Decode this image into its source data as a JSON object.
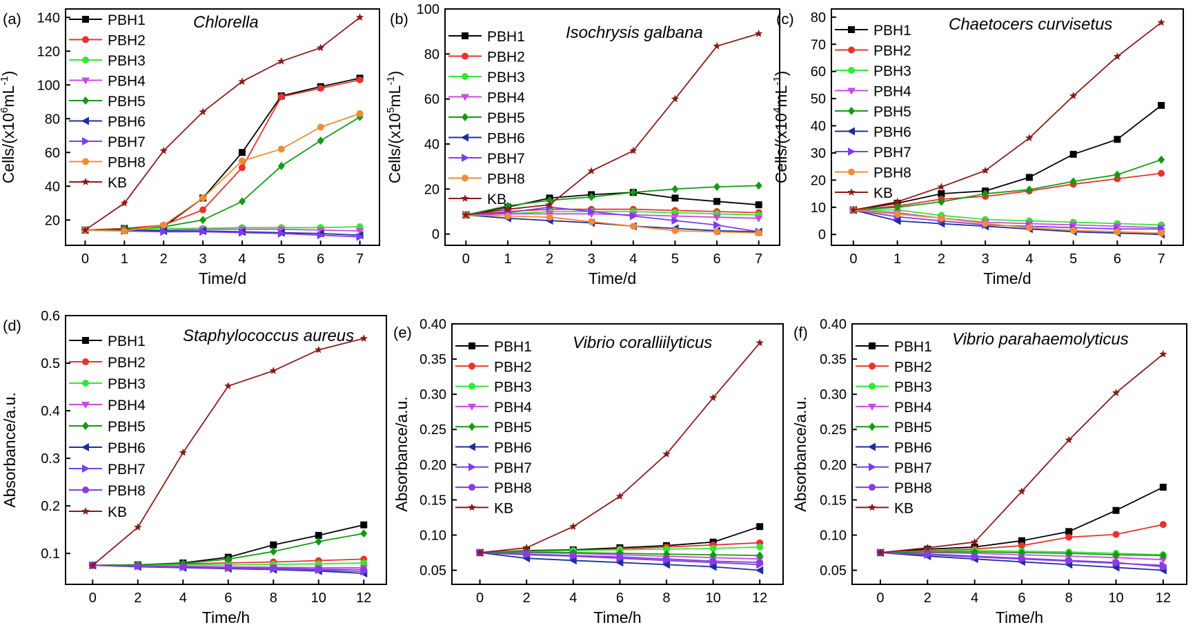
{
  "colors": {
    "PBH1": "#000000",
    "PBH2": "#e8322b",
    "PBH3": "#33e633",
    "PBH4": "#c84bdf",
    "PBH5": "#119a11",
    "PBH6": "#1c2f9e",
    "PBH7": "#7b3cf0",
    "PBH8_orange": "#f28b35",
    "PBH8_purple": "#8a3ce0",
    "KB": "#8b1a1a"
  },
  "chart_data": [
    {
      "type": "line",
      "panel_label": "(a)",
      "annotation": "Chlorella",
      "xlabel": "Time/d",
      "ylabel": "Cells/(x10",
      "ylabel_exp": "6",
      "ylabel_unit": "mL",
      "ylabel_unit_exp": "-1",
      "ylim": [
        5,
        145
      ],
      "yticks": [
        20,
        40,
        60,
        80,
        100,
        120,
        140
      ],
      "xlim": [
        -0.5,
        7.5
      ],
      "xticks": [
        0,
        1,
        2,
        3,
        4,
        5,
        6,
        7
      ],
      "x": [
        0,
        1,
        2,
        3,
        4,
        5,
        6,
        7
      ],
      "legend_position": "top-left",
      "series": [
        {
          "name": "PBH1",
          "values": [
            14,
            15,
            16,
            33,
            60,
            93.5,
            99,
            104
          ]
        },
        {
          "name": "PBH2",
          "values": [
            14,
            15,
            17,
            26,
            51,
            93,
            98,
            103
          ]
        },
        {
          "name": "PBH3",
          "values": [
            14,
            14.5,
            15,
            15,
            15.5,
            15.5,
            15.5,
            16
          ]
        },
        {
          "name": "PBH4",
          "values": [
            14,
            14,
            14,
            14.5,
            14.5,
            14.5,
            14,
            13.5
          ]
        },
        {
          "name": "PBH5",
          "values": [
            14,
            14.5,
            16,
            20,
            31,
            52,
            67,
            81
          ]
        },
        {
          "name": "PBH6",
          "values": [
            14,
            14,
            13.5,
            13.5,
            13,
            12.5,
            12,
            11
          ]
        },
        {
          "name": "PBH7",
          "values": [
            14,
            13.5,
            13,
            13,
            12.5,
            12,
            11,
            10
          ]
        },
        {
          "name": "PBH8",
          "values": [
            14,
            13.5,
            17,
            33,
            55,
            62,
            75,
            83
          ]
        },
        {
          "name": "KB",
          "values": [
            14,
            30,
            61,
            84,
            102,
            114,
            122,
            140
          ]
        }
      ]
    },
    {
      "type": "line",
      "panel_label": "(b)",
      "annotation": "Isochrysis galbana",
      "xlabel": "Time/d",
      "ylabel": "Cells/(x10",
      "ylabel_exp": "5",
      "ylabel_unit": "mL",
      "ylabel_unit_exp": "-1",
      "ylim": [
        -5,
        100
      ],
      "yticks": [
        0,
        20,
        40,
        60,
        80,
        100
      ],
      "xlim": [
        -0.5,
        7.5
      ],
      "xticks": [
        0,
        1,
        2,
        3,
        4,
        5,
        6,
        7
      ],
      "x": [
        0,
        1,
        2,
        3,
        4,
        5,
        6,
        7
      ],
      "legend_position": "top-left",
      "series": [
        {
          "name": "PBH1",
          "values": [
            8.5,
            12,
            16,
            17.5,
            18.5,
            16,
            14.5,
            13
          ]
        },
        {
          "name": "PBH2",
          "values": [
            8.5,
            10,
            11,
            11,
            11,
            10.5,
            10,
            9.5
          ]
        },
        {
          "name": "PBH3",
          "values": [
            8.5,
            9,
            10,
            10,
            10,
            9.5,
            9,
            8.5
          ]
        },
        {
          "name": "PBH4",
          "values": [
            8.5,
            9,
            9,
            9,
            8.5,
            8,
            7.5,
            7
          ]
        },
        {
          "name": "PBH5",
          "values": [
            8.5,
            12.5,
            15,
            16.5,
            18.5,
            20,
            21,
            21.5
          ]
        },
        {
          "name": "PBH6",
          "values": [
            8.5,
            7,
            6,
            5,
            3.5,
            2.5,
            1.5,
            1
          ]
        },
        {
          "name": "PBH7",
          "values": [
            8.5,
            9.5,
            12,
            10,
            8,
            6,
            4,
            1
          ]
        },
        {
          "name": "PBH8",
          "values": [
            8.5,
            8,
            7.5,
            5.5,
            3.5,
            1.5,
            1,
            0.5
          ]
        },
        {
          "name": "KB",
          "values": [
            8.5,
            11,
            13,
            28,
            37,
            60,
            83.5,
            89
          ]
        }
      ]
    },
    {
      "type": "line",
      "panel_label": "(c)",
      "annotation": "Chaetocers curvisetus",
      "xlabel": "Time/d",
      "ylabel": "Cells/(x10",
      "ylabel_exp": "4",
      "ylabel_unit": "mL",
      "ylabel_unit_exp": "-1",
      "ylim": [
        -4,
        83
      ],
      "yticks": [
        0,
        10,
        20,
        30,
        40,
        50,
        60,
        70,
        80
      ],
      "xlim": [
        -0.5,
        7.5
      ],
      "xticks": [
        0,
        1,
        2,
        3,
        4,
        5,
        6,
        7
      ],
      "x": [
        0,
        1,
        2,
        3,
        4,
        5,
        6,
        7
      ],
      "legend_position": "top-left",
      "series": [
        {
          "name": "PBH1",
          "values": [
            9,
            11.5,
            15,
            16,
            21,
            29.5,
            35,
            47.5
          ]
        },
        {
          "name": "PBH2",
          "values": [
            9,
            10.5,
            13,
            14,
            16,
            18.5,
            20.5,
            22.5
          ]
        },
        {
          "name": "PBH3",
          "values": [
            9,
            9,
            7,
            5.5,
            5,
            4.5,
            4,
            3.5
          ]
        },
        {
          "name": "PBH4",
          "values": [
            9,
            8,
            6,
            4.5,
            4,
            3.5,
            3,
            2.5
          ]
        },
        {
          "name": "PBH5",
          "values": [
            9,
            10,
            12,
            15,
            16.5,
            19.5,
            22,
            27.5
          ]
        },
        {
          "name": "PBH6",
          "values": [
            9,
            5,
            4,
            3,
            2,
            1,
            0.5,
            0
          ]
        },
        {
          "name": "PBH7",
          "values": [
            9,
            6.5,
            5,
            3.5,
            3,
            2.5,
            2,
            2
          ]
        },
        {
          "name": "PBH8",
          "values": [
            9,
            7.5,
            6,
            4,
            2.5,
            1.5,
            1,
            0.5
          ]
        },
        {
          "name": "KB",
          "values": [
            9,
            12,
            17.5,
            23.5,
            35.5,
            51,
            65.5,
            78
          ]
        }
      ]
    },
    {
      "type": "line",
      "panel_label": "(d)",
      "annotation": "Staphylococcus aureus",
      "xlabel": "Time/h",
      "ylabel": "Absorbance/a.u.",
      "ylim": [
        0.035,
        0.6
      ],
      "yticks": [
        0.1,
        0.2,
        0.3,
        0.4,
        0.5,
        0.6
      ],
      "ytick_labels": [
        "0.1",
        "0.2",
        "0.3",
        "0.4",
        "0.5",
        "0.6"
      ],
      "xlim": [
        -1.2,
        13
      ],
      "xticks": [
        0,
        2,
        4,
        6,
        8,
        10,
        12
      ],
      "x": [
        0,
        2,
        4,
        6,
        8,
        10,
        12
      ],
      "legend_position": "top-left",
      "series": [
        {
          "name": "PBH1",
          "values": [
            0.075,
            0.076,
            0.08,
            0.092,
            0.118,
            0.138,
            0.16
          ]
        },
        {
          "name": "PBH2",
          "values": [
            0.075,
            0.076,
            0.078,
            0.08,
            0.082,
            0.085,
            0.088
          ]
        },
        {
          "name": "PBH3",
          "values": [
            0.075,
            0.075,
            0.076,
            0.076,
            0.077,
            0.078,
            0.08
          ]
        },
        {
          "name": "PBH4",
          "values": [
            0.075,
            0.074,
            0.073,
            0.072,
            0.071,
            0.07,
            0.07
          ]
        },
        {
          "name": "PBH5",
          "values": [
            0.075,
            0.076,
            0.079,
            0.088,
            0.104,
            0.125,
            0.142
          ]
        },
        {
          "name": "PBH6",
          "values": [
            0.075,
            0.072,
            0.07,
            0.068,
            0.066,
            0.063,
            0.058
          ]
        },
        {
          "name": "PBH7",
          "values": [
            0.075,
            0.073,
            0.071,
            0.069,
            0.067,
            0.065,
            0.062
          ]
        },
        {
          "name": "PBH8",
          "values": [
            0.075,
            0.073,
            0.072,
            0.07,
            0.069,
            0.067,
            0.066
          ]
        },
        {
          "name": "KB",
          "values": [
            0.075,
            0.155,
            0.312,
            0.452,
            0.484,
            0.528,
            0.552
          ]
        }
      ]
    },
    {
      "type": "line",
      "panel_label": "(e)",
      "annotation": "Vibrio coralliilyticus",
      "xlabel": "Time/h",
      "ylabel": "Absorbance/a.u.",
      "ylim": [
        0.03,
        0.4
      ],
      "yticks": [
        0.05,
        0.1,
        0.15,
        0.2,
        0.25,
        0.3,
        0.35,
        0.4
      ],
      "ytick_labels": [
        "0.05",
        "0.10",
        "0.15",
        "0.20",
        "0.25",
        "0.30",
        "0.35",
        "0.40"
      ],
      "xlim": [
        -1.2,
        13
      ],
      "xticks": [
        0,
        2,
        4,
        6,
        8,
        10,
        12
      ],
      "x": [
        0,
        2,
        4,
        6,
        8,
        10,
        12
      ],
      "legend_position": "top-left",
      "series": [
        {
          "name": "PBH1",
          "values": [
            0.075,
            0.078,
            0.079,
            0.082,
            0.085,
            0.09,
            0.112
          ]
        },
        {
          "name": "PBH2",
          "values": [
            0.075,
            0.077,
            0.078,
            0.08,
            0.083,
            0.086,
            0.089
          ]
        },
        {
          "name": "PBH3",
          "values": [
            0.075,
            0.077,
            0.078,
            0.079,
            0.08,
            0.081,
            0.083
          ]
        },
        {
          "name": "PBH4",
          "values": [
            0.075,
            0.075,
            0.074,
            0.072,
            0.07,
            0.068,
            0.066
          ]
        },
        {
          "name": "PBH5",
          "values": [
            0.075,
            0.076,
            0.075,
            0.074,
            0.073,
            0.072,
            0.071
          ]
        },
        {
          "name": "PBH6",
          "values": [
            0.075,
            0.067,
            0.064,
            0.061,
            0.058,
            0.055,
            0.05
          ]
        },
        {
          "name": "PBH7",
          "values": [
            0.075,
            0.072,
            0.07,
            0.067,
            0.064,
            0.061,
            0.058
          ]
        },
        {
          "name": "PBH8",
          "values": [
            0.075,
            0.073,
            0.071,
            0.069,
            0.066,
            0.063,
            0.061
          ]
        },
        {
          "name": "KB",
          "values": [
            0.075,
            0.082,
            0.112,
            0.155,
            0.215,
            0.295,
            0.373
          ]
        }
      ]
    },
    {
      "type": "line",
      "panel_label": "(f)",
      "annotation": "Vibrio parahaemolyticus",
      "xlabel": "Time/h",
      "ylabel": "Absorbance/a.u.",
      "ylim": [
        0.03,
        0.4
      ],
      "yticks": [
        0.05,
        0.1,
        0.15,
        0.2,
        0.25,
        0.3,
        0.35,
        0.4
      ],
      "ytick_labels": [
        "0.05",
        "0.10",
        "0.15",
        "0.20",
        "0.25",
        "0.30",
        "0.35",
        "0.40"
      ],
      "xlim": [
        -1.2,
        13
      ],
      "xticks": [
        0,
        2,
        4,
        6,
        8,
        10,
        12
      ],
      "x": [
        0,
        2,
        4,
        6,
        8,
        10,
        12
      ],
      "legend_position": "top-left",
      "series": [
        {
          "name": "PBH1",
          "values": [
            0.075,
            0.08,
            0.083,
            0.092,
            0.105,
            0.135,
            0.168
          ]
        },
        {
          "name": "PBH2",
          "values": [
            0.075,
            0.078,
            0.08,
            0.085,
            0.097,
            0.101,
            0.115
          ]
        },
        {
          "name": "PBH3",
          "values": [
            0.075,
            0.077,
            0.078,
            0.077,
            0.076,
            0.074,
            0.072
          ]
        },
        {
          "name": "PBH4",
          "values": [
            0.075,
            0.075,
            0.074,
            0.072,
            0.07,
            0.068,
            0.065
          ]
        },
        {
          "name": "PBH5",
          "values": [
            0.075,
            0.076,
            0.076,
            0.075,
            0.074,
            0.072,
            0.071
          ]
        },
        {
          "name": "PBH6",
          "values": [
            0.075,
            0.07,
            0.066,
            0.062,
            0.058,
            0.054,
            0.05
          ]
        },
        {
          "name": "PBH7",
          "values": [
            0.075,
            0.072,
            0.069,
            0.066,
            0.063,
            0.06,
            0.057
          ]
        },
        {
          "name": "PBH8",
          "values": [
            0.075,
            0.073,
            0.07,
            0.067,
            0.064,
            0.061,
            0.055
          ]
        },
        {
          "name": "KB",
          "values": [
            0.075,
            0.082,
            0.09,
            0.162,
            0.235,
            0.302,
            0.357
          ]
        }
      ]
    }
  ]
}
